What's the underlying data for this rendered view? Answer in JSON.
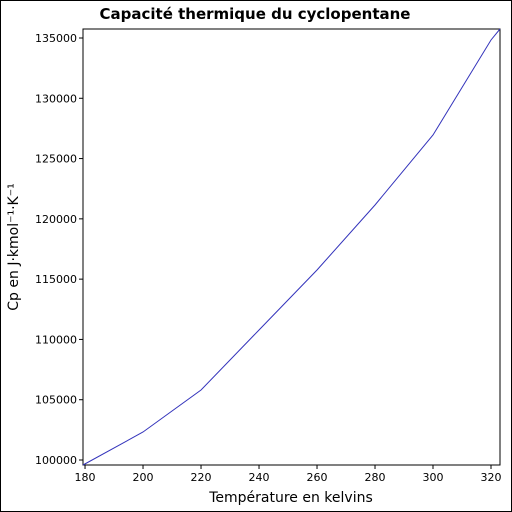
{
  "chart_data": {
    "type": "line",
    "title": "Capacité thermique du cyclopentane",
    "xlabel": "Température en kelvins",
    "ylabel": "Cp en J·kmol⁻¹·K⁻¹",
    "x": [
      179.3,
      200,
      220,
      240,
      260,
      280,
      300,
      320,
      323.1
    ],
    "series": [
      {
        "name": "Cp",
        "color": "#3333bb",
        "values": [
          99585,
          102322,
          105806,
          110782,
          115759,
          121150,
          126955,
          134835,
          135746
        ]
      }
    ],
    "xlim": [
      179.3,
      323.1
    ],
    "ylim": [
      99585,
      135746
    ],
    "xticks": [
      180,
      200,
      220,
      240,
      260,
      280,
      300,
      320
    ],
    "yticks": [
      100000,
      105000,
      110000,
      115000,
      120000,
      125000,
      130000,
      135000
    ]
  }
}
